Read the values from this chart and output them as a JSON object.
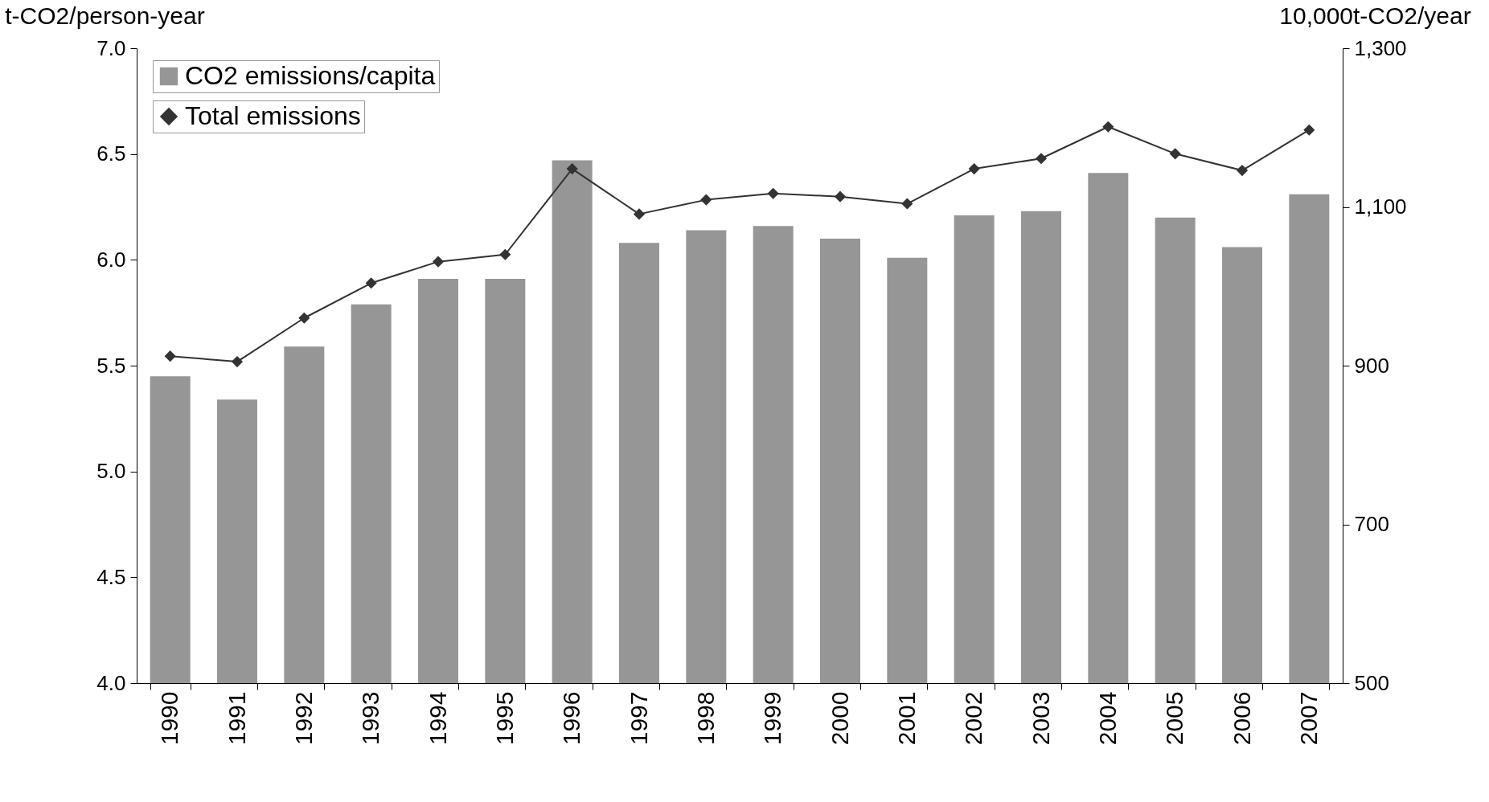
{
  "chart_data": {
    "type": "bar",
    "categories": [
      "1990",
      "1991",
      "1992",
      "1993",
      "1994",
      "1995",
      "1996",
      "1997",
      "1998",
      "1999",
      "2000",
      "2001",
      "2002",
      "2003",
      "2004",
      "2005",
      "2006",
      "2007"
    ],
    "series": [
      {
        "name": "CO2 emissions/capita",
        "color": "#969696",
        "values": [
          5.45,
          5.34,
          5.59,
          5.79,
          5.91,
          5.91,
          6.47,
          6.08,
          6.14,
          6.16,
          6.1,
          6.01,
          6.21,
          6.23,
          6.41,
          6.2,
          6.06,
          6.31
        ]
      },
      {
        "name": "Total emissions",
        "type": "line",
        "axis": "y2",
        "color": "#333333",
        "marker": "diamond",
        "values": [
          912,
          905,
          960,
          1004,
          1031,
          1040,
          1148,
          1091,
          1109,
          1117,
          1113,
          1104,
          1148,
          1161,
          1201,
          1167,
          1146,
          1197
        ]
      }
    ],
    "ylabel": "t-CO2/person-year",
    "y2label": "10,000t-CO2/year",
    "ylim": [
      4,
      7
    ],
    "yticks": [
      {
        "value": 4,
        "label": "4.0"
      },
      {
        "value": 4.5,
        "label": "4.5"
      },
      {
        "value": 5,
        "label": "5.0"
      },
      {
        "value": 5.5,
        "label": "5.5"
      },
      {
        "value": 6,
        "label": "6.0"
      },
      {
        "value": 6.5,
        "label": "6.5"
      },
      {
        "value": 7,
        "label": "7.0"
      }
    ],
    "y2lim": [
      500,
      1300
    ],
    "y2ticks": [
      500,
      700,
      900,
      {
        "value": 1100,
        "label": "1,100"
      },
      {
        "value": 1300,
        "label": "1,300"
      }
    ],
    "legend": "top left",
    "grid": false
  }
}
